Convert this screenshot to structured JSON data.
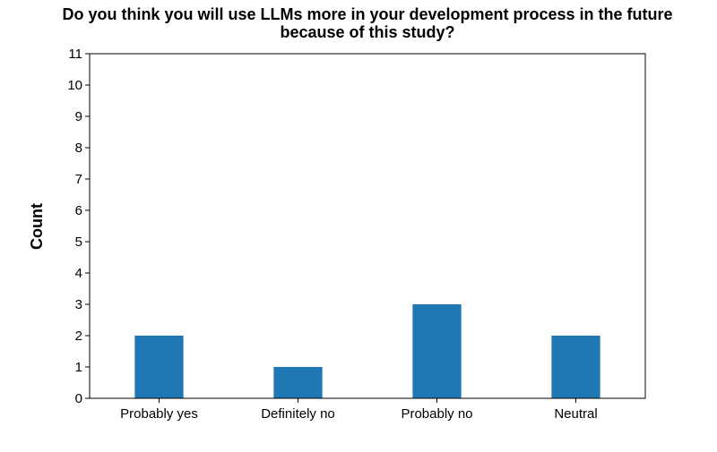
{
  "chart_data": {
    "type": "bar",
    "title_lines": [
      "Do you think you will use LLMs more in your development process in the future",
      "because of this study?"
    ],
    "xlabel": "",
    "ylabel": "Count",
    "categories": [
      "Probably yes",
      "Definitely no",
      "Probably no",
      "Neutral"
    ],
    "values": [
      2,
      1,
      3,
      2
    ],
    "ylim": [
      0,
      11
    ],
    "yticks": [
      0,
      1,
      2,
      3,
      4,
      5,
      6,
      7,
      8,
      9,
      10,
      11
    ],
    "bar_color": "#1f77b4",
    "grid": false,
    "legend": false
  }
}
